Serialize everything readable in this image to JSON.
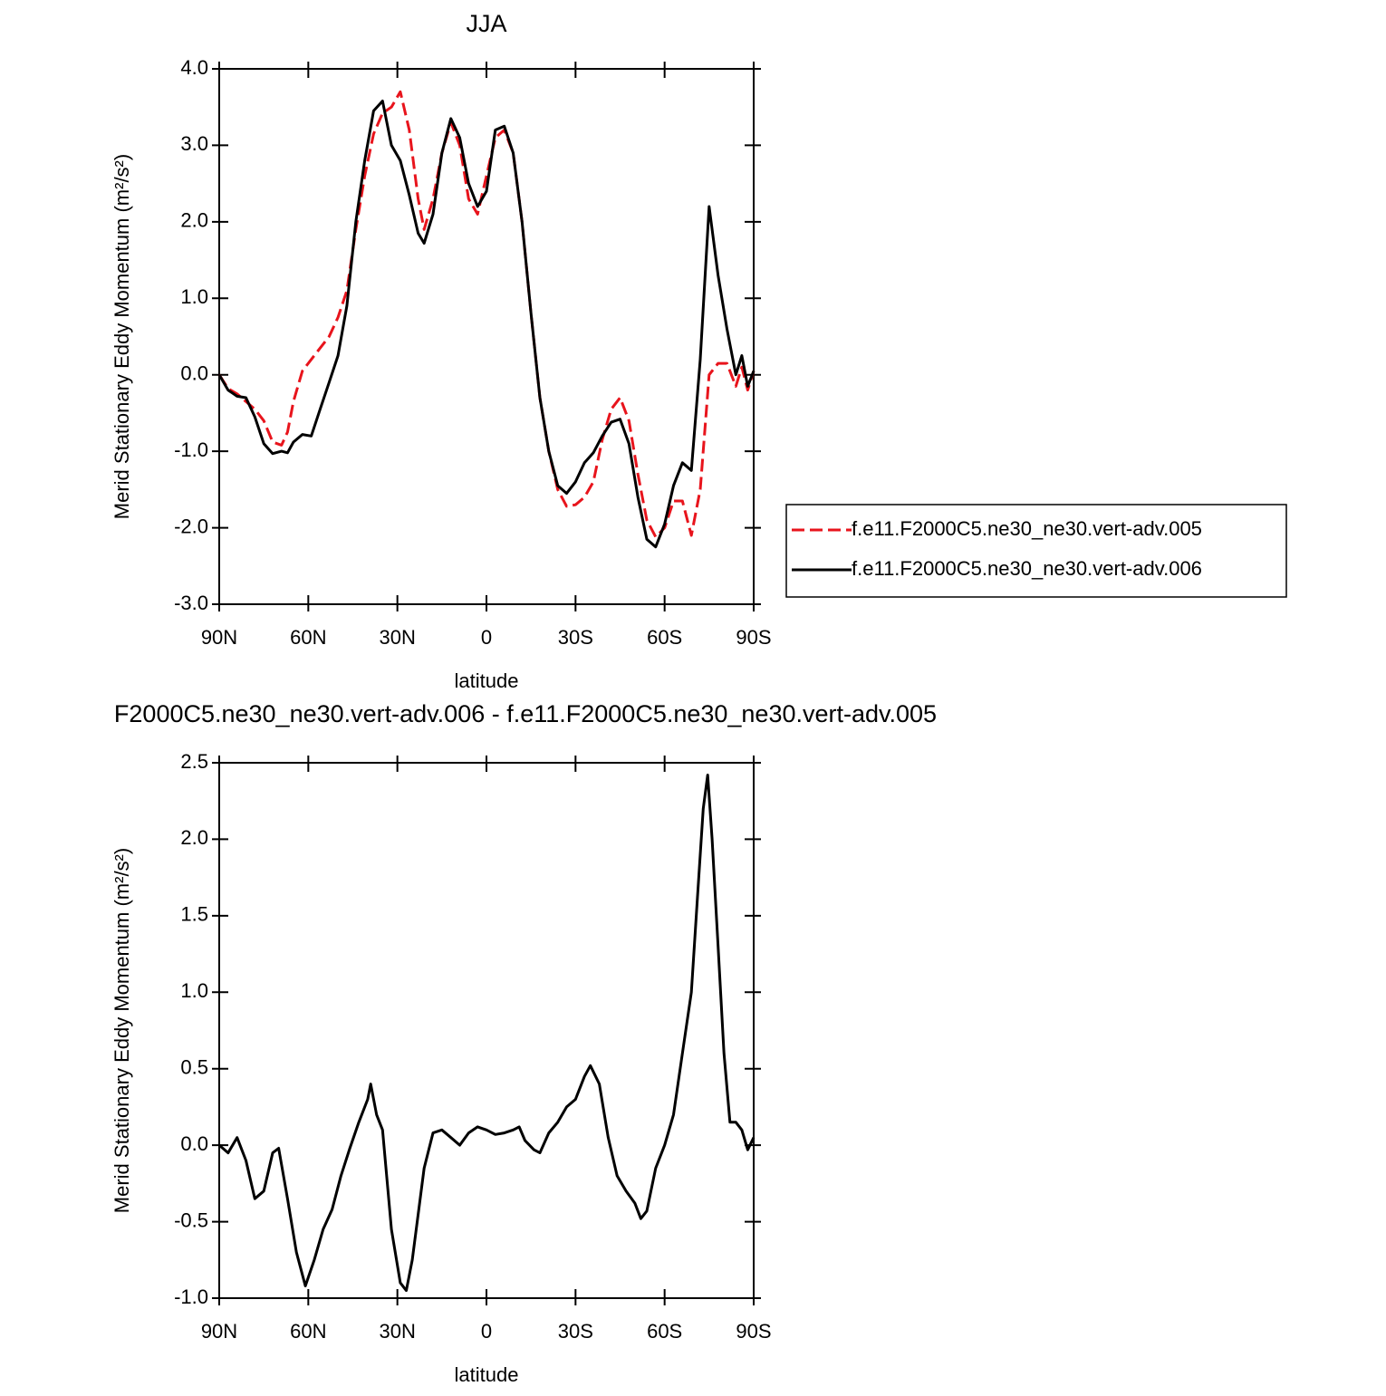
{
  "chart_data": [
    {
      "type": "line",
      "title": "JJA",
      "xlabel": "latitude",
      "ylabel": "Merid Stationary Eddy Momentum (m²/s²)",
      "xlim": [
        90,
        -90
      ],
      "ylim": [
        -3,
        4
      ],
      "xticks": [
        {
          "value": 90,
          "label": "90N"
        },
        {
          "value": 60,
          "label": "60N"
        },
        {
          "value": 30,
          "label": "30N"
        },
        0,
        {
          "value": -30,
          "label": "30S"
        },
        {
          "value": -60,
          "label": "60S"
        },
        {
          "value": -90,
          "label": "90S"
        }
      ],
      "yticks": [
        {
          "value": -3,
          "label": "-3.0"
        },
        {
          "value": -2,
          "label": "-2.0"
        },
        {
          "value": -1,
          "label": "-1.0"
        },
        {
          "value": 0,
          "label": "0.0"
        },
        {
          "value": 1,
          "label": "1.0"
        },
        {
          "value": 2,
          "label": "2.0"
        },
        {
          "value": 3,
          "label": "3.0"
        },
        {
          "value": 4,
          "label": "4.0"
        }
      ],
      "legend": "outside-right",
      "x": [
        90,
        87,
        84,
        81,
        78,
        75,
        72,
        69,
        67,
        65,
        62,
        59,
        56,
        53,
        50,
        47,
        44,
        41,
        38,
        35,
        32,
        29,
        26,
        23,
        21,
        18,
        15,
        12,
        9,
        6,
        3,
        0,
        -3,
        -6,
        -9,
        -12,
        -15,
        -18,
        -21,
        -24,
        -27,
        -30,
        -33,
        -36,
        -39,
        -42,
        -45,
        -48,
        -51,
        -54,
        -57,
        -60,
        -63,
        -66,
        -69,
        -72,
        -75,
        -78,
        -81,
        -84,
        -86,
        -88,
        -90
      ],
      "series": [
        {
          "name": "f.e11.F2000C5.ne30_ne30.vert-adv.005",
          "color": "#e8141c",
          "dash": true,
          "values": [
            0,
            -0.18,
            -0.25,
            -0.35,
            -0.45,
            -0.6,
            -0.88,
            -0.92,
            -0.75,
            -0.35,
            0.05,
            0.2,
            0.35,
            0.5,
            0.75,
            1.1,
            1.9,
            2.6,
            3.15,
            3.42,
            3.5,
            3.7,
            3.2,
            2.3,
            1.9,
            2.3,
            2.9,
            3.3,
            3.0,
            2.3,
            2.1,
            2.6,
            3.1,
            3.2,
            2.9,
            2.0,
            0.8,
            -0.3,
            -1.0,
            -1.5,
            -1.72,
            -1.7,
            -1.6,
            -1.4,
            -0.85,
            -0.45,
            -0.3,
            -0.6,
            -1.3,
            -1.9,
            -2.12,
            -2.0,
            -1.65,
            -1.65,
            -2.1,
            -1.5,
            0.0,
            0.15,
            0.15,
            -0.15,
            0.1,
            -0.2,
            0.05
          ]
        },
        {
          "name": "f.e11.F2000C5.ne30_ne30.vert-adv.006",
          "color": "#000000",
          "dash": false,
          "values": [
            0,
            -0.2,
            -0.28,
            -0.3,
            -0.55,
            -0.9,
            -1.03,
            -1.0,
            -1.02,
            -0.88,
            -0.78,
            -0.8,
            -0.45,
            -0.1,
            0.25,
            0.9,
            2.0,
            2.8,
            3.45,
            3.58,
            3.0,
            2.8,
            2.35,
            1.85,
            1.72,
            2.1,
            2.9,
            3.35,
            3.1,
            2.5,
            2.2,
            2.4,
            3.2,
            3.25,
            2.9,
            2.0,
            0.8,
            -0.3,
            -1.0,
            -1.45,
            -1.55,
            -1.4,
            -1.15,
            -1.02,
            -0.8,
            -0.62,
            -0.58,
            -0.9,
            -1.6,
            -2.15,
            -2.25,
            -1.95,
            -1.45,
            -1.15,
            -1.25,
            0.2,
            2.2,
            1.3,
            0.6,
            0.0,
            0.25,
            -0.15,
            0.05
          ]
        }
      ]
    },
    {
      "type": "line",
      "title": "F2000C5.ne30_ne30.vert-adv.006 - f.e11.F2000C5.ne30_ne30.vert-adv.005",
      "xlabel": "latitude",
      "ylabel": "Merid Stationary Eddy Momentum (m²/s²)",
      "xlim": [
        90,
        -90
      ],
      "ylim": [
        -1,
        2.5
      ],
      "xticks": [
        {
          "value": 90,
          "label": "90N"
        },
        {
          "value": 60,
          "label": "60N"
        },
        {
          "value": 30,
          "label": "30N"
        },
        0,
        {
          "value": -30,
          "label": "30S"
        },
        {
          "value": -60,
          "label": "60S"
        },
        {
          "value": -90,
          "label": "90S"
        }
      ],
      "yticks": [
        {
          "value": -1,
          "label": "-1.0"
        },
        -0.5,
        {
          "value": 0,
          "label": "0.0"
        },
        0.5,
        {
          "value": 1,
          "label": "1.0"
        },
        1.5,
        {
          "value": 2,
          "label": "2.0"
        },
        2.5
      ],
      "x": [
        90,
        87,
        84,
        81,
        78,
        75,
        72,
        70,
        67,
        64,
        61,
        58,
        55,
        52,
        49,
        46,
        43,
        40,
        39,
        37,
        35,
        32,
        29,
        27,
        25,
        21,
        18,
        15,
        12,
        9,
        6,
        3,
        0,
        -3,
        -6,
        -9,
        -11,
        -13,
        -16,
        -18,
        -21,
        -24,
        -27,
        -30,
        -33,
        -35,
        -38,
        -41,
        -44,
        -47,
        -50,
        -52,
        -54,
        -57,
        -60,
        -63,
        -66,
        -69,
        -71,
        -73,
        -74.5,
        -76,
        -78,
        -80,
        -82,
        -84,
        -86,
        -88,
        -90
      ],
      "series": [
        {
          "color": "#000000",
          "dash": false,
          "values": [
            0.0,
            -0.05,
            0.05,
            -0.1,
            -0.35,
            -0.3,
            -0.05,
            -0.02,
            -0.35,
            -0.7,
            -0.92,
            -0.75,
            -0.55,
            -0.42,
            -0.2,
            -0.02,
            0.15,
            0.3,
            0.4,
            0.2,
            0.1,
            -0.55,
            -0.9,
            -0.95,
            -0.75,
            -0.15,
            0.08,
            0.1,
            0.05,
            0.0,
            0.08,
            0.12,
            0.1,
            0.07,
            0.08,
            0.1,
            0.12,
            0.03,
            -0.03,
            -0.05,
            0.08,
            0.15,
            0.25,
            0.3,
            0.45,
            0.52,
            0.4,
            0.05,
            -0.2,
            -0.3,
            -0.38,
            -0.48,
            -0.43,
            -0.15,
            0.0,
            0.2,
            0.6,
            1.0,
            1.6,
            2.2,
            2.42,
            2.0,
            1.3,
            0.6,
            0.15,
            0.15,
            0.1,
            -0.03,
            0.05
          ]
        }
      ]
    }
  ]
}
